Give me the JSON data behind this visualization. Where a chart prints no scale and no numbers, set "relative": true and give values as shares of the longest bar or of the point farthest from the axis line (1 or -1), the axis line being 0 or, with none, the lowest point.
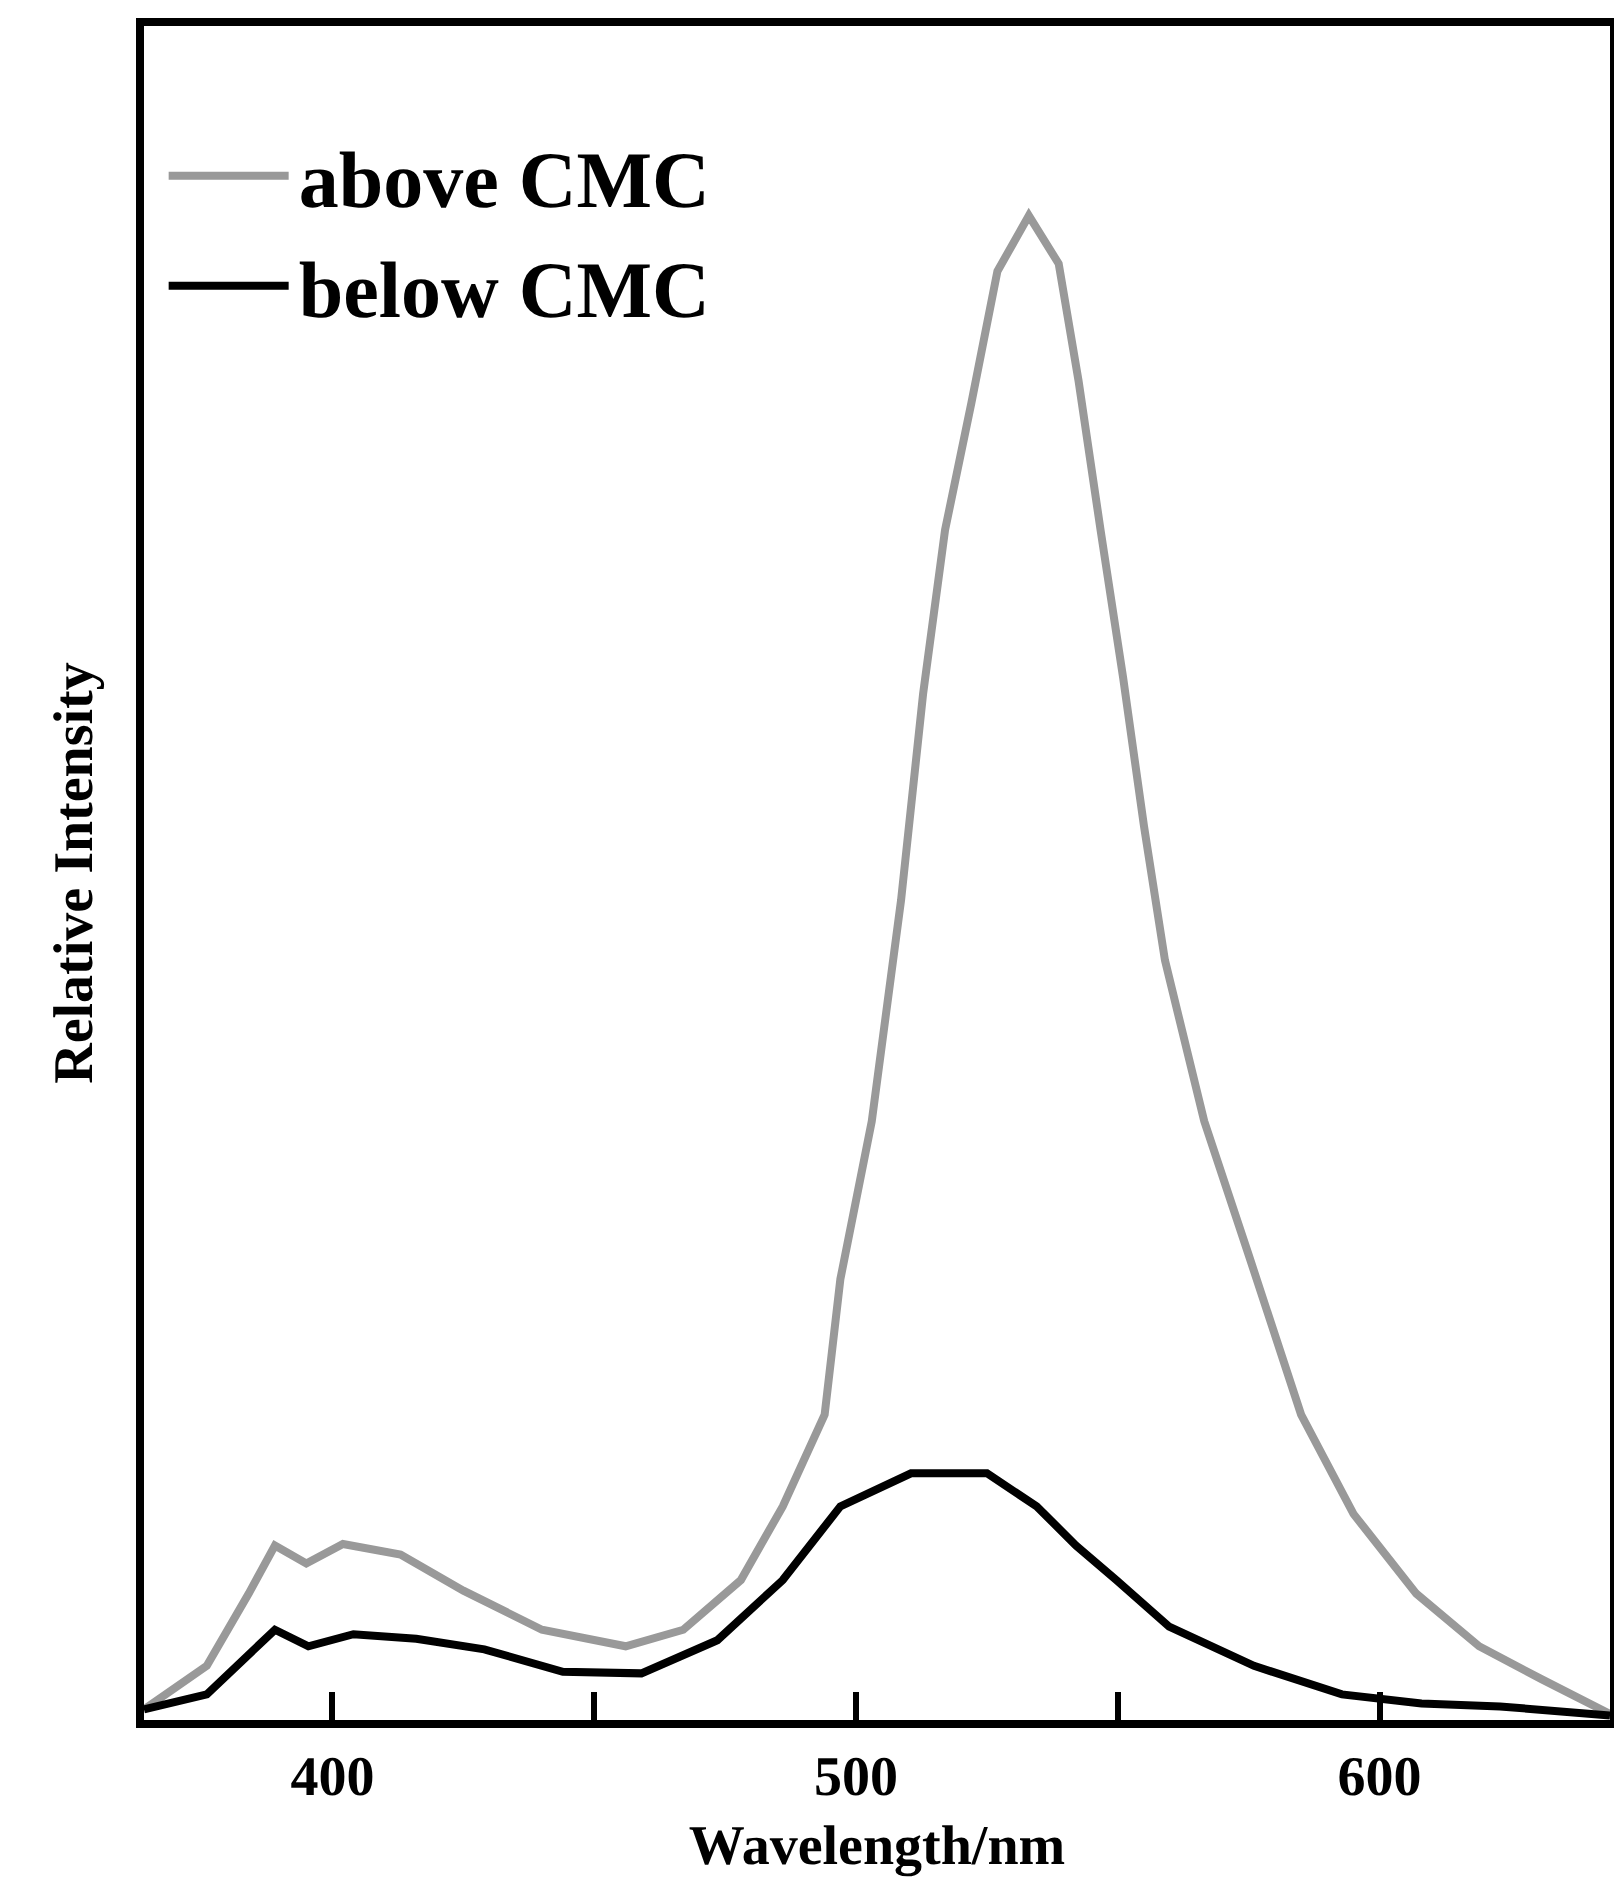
{
  "chart_data": {
    "type": "line",
    "xlabel": "Wavelength/nm",
    "ylabel": "Relative Intensity",
    "relative": true,
    "xlim": [
      364,
      644
    ],
    "xticks": [
      400,
      {
        "value": 450,
        "label": null
      },
      500,
      {
        "value": 550,
        "label": null
      },
      600
    ],
    "grid": false,
    "legend": "top left",
    "marker": "none",
    "line_style": "solid",
    "series": [
      {
        "name": "above CMC",
        "color": "#999999",
        "x": [
          364,
          376,
          384,
          389,
          395,
          402,
          413,
          425,
          440,
          456,
          467,
          478,
          486,
          494,
          497,
          503,
          508.6,
          512.8,
          517,
          522,
          527,
          533,
          538.7,
          542.5,
          546.7,
          551,
          555,
          559,
          566.5,
          575,
          585,
          595,
          607,
          619,
          631,
          644
        ],
        "values": [
          0.007,
          0.036,
          0.084,
          0.116,
          0.104,
          0.117,
          0.11,
          0.086,
          0.06,
          0.049,
          0.06,
          0.093,
          0.142,
          0.203,
          0.293,
          0.398,
          0.545,
          0.682,
          0.791,
          0.875,
          0.963,
          1,
          0.968,
          0.89,
          0.791,
          0.693,
          0.594,
          0.505,
          0.398,
          0.309,
          0.203,
          0.137,
          0.084,
          0.049,
          0.027,
          0.004
        ]
      },
      {
        "name": "below CMC",
        "color": "#000000",
        "x": [
          364,
          376,
          389,
          395.4,
          404,
          416,
          429,
          444,
          459,
          473.5,
          486,
          497,
          510.5,
          525,
          534.5,
          542,
          549.7,
          559.8,
          576,
          592.8,
          608,
          623,
          644
        ],
        "values": [
          0.007,
          0.017,
          0.06,
          0.049,
          0.057,
          0.054,
          0.047,
          0.032,
          0.031,
          0.053,
          0.093,
          0.142,
          0.164,
          0.164,
          0.142,
          0.116,
          0.093,
          0.062,
          0.036,
          0.017,
          0.011,
          0.009,
          0.003
        ]
      }
    ]
  }
}
